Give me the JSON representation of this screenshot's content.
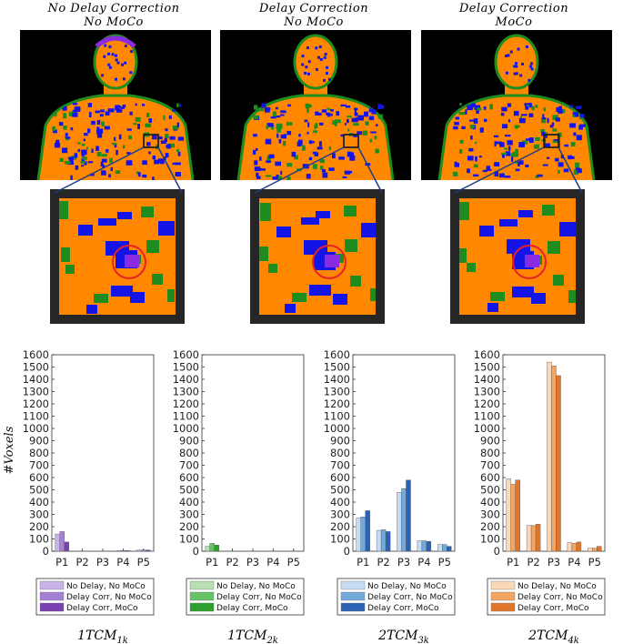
{
  "column_titles": [
    {
      "line1": "No Delay Correction",
      "line2": "No MoCo"
    },
    {
      "line1": "Delay Correction",
      "line2": "No MoCo"
    },
    {
      "line1": "Delay Correction",
      "line2": "MoCo"
    }
  ],
  "colors": {
    "orange": "#ff8800",
    "blue": "#1414e6",
    "green": "#1e8c1e",
    "purple": "#8a2be2",
    "highlight_circle": "#e8202a",
    "frame": "#262626"
  },
  "chart_data": [
    {
      "type": "bar",
      "model_label": {
        "base": "1TCM",
        "sub": "1k"
      },
      "ylabel": "#Voxels",
      "categories": [
        "P1",
        "P2",
        "P3",
        "P4",
        "P5"
      ],
      "ylim": [
        0,
        1600
      ],
      "yticks": [
        0,
        100,
        200,
        300,
        400,
        500,
        600,
        700,
        800,
        900,
        1000,
        1100,
        1200,
        1300,
        1400,
        1500,
        1600
      ],
      "grid": false,
      "legend_position": "below",
      "series": [
        {
          "name": "No Delay, No MoCo",
          "color": "#c9b3e6",
          "values": [
            140,
            0,
            0,
            5,
            10
          ]
        },
        {
          "name": "Delay Corr, No MoCo",
          "color": "#a680d4",
          "values": [
            160,
            0,
            0,
            5,
            10
          ]
        },
        {
          "name": "Delay Corr, MoCo",
          "color": "#7a3fb0",
          "values": [
            75,
            0,
            0,
            5,
            10
          ]
        }
      ]
    },
    {
      "type": "bar",
      "model_label": {
        "base": "1TCM",
        "sub": "2k"
      },
      "ylabel": "",
      "categories": [
        "P1",
        "P2",
        "P3",
        "P4",
        "P5"
      ],
      "ylim": [
        0,
        1600
      ],
      "yticks": [
        0,
        100,
        200,
        300,
        400,
        500,
        600,
        700,
        800,
        900,
        1000,
        1100,
        1200,
        1300,
        1400,
        1500,
        1600
      ],
      "grid": false,
      "legend_position": "below",
      "series": [
        {
          "name": "No Delay, No MoCo",
          "color": "#b7e0b0",
          "values": [
            40,
            0,
            0,
            0,
            0
          ]
        },
        {
          "name": "Delay Corr, No MoCo",
          "color": "#66c266",
          "values": [
            65,
            0,
            0,
            0,
            0
          ]
        },
        {
          "name": "Delay Corr, MoCo",
          "color": "#2ca02c",
          "values": [
            50,
            0,
            0,
            0,
            0
          ]
        }
      ]
    },
    {
      "type": "bar",
      "model_label": {
        "base": "2TCM",
        "sub": "3k"
      },
      "ylabel": "",
      "categories": [
        "P1",
        "P2",
        "P3",
        "P4",
        "P5"
      ],
      "ylim": [
        0,
        1600
      ],
      "yticks": [
        0,
        100,
        200,
        300,
        400,
        500,
        600,
        700,
        800,
        900,
        1000,
        1100,
        1200,
        1300,
        1400,
        1500,
        1600
      ],
      "grid": false,
      "legend_position": "below",
      "series": [
        {
          "name": "No Delay, No MoCo",
          "color": "#c6dcf2",
          "values": [
            270,
            170,
            480,
            85,
            55
          ]
        },
        {
          "name": "Delay Corr, No MoCo",
          "color": "#74a9dc",
          "values": [
            280,
            175,
            510,
            85,
            55
          ]
        },
        {
          "name": "Delay Corr, MoCo",
          "color": "#2c62b4",
          "values": [
            330,
            160,
            580,
            80,
            40
          ]
        }
      ]
    },
    {
      "type": "bar",
      "model_label": {
        "base": "2TCM",
        "sub": "4k"
      },
      "ylabel": "",
      "categories": [
        "P1",
        "P2",
        "P3",
        "P4",
        "P5"
      ],
      "ylim": [
        0,
        1600
      ],
      "yticks": [
        0,
        100,
        200,
        300,
        400,
        500,
        600,
        700,
        800,
        900,
        1000,
        1100,
        1200,
        1300,
        1400,
        1500,
        1600
      ],
      "grid": false,
      "legend_position": "below",
      "series": [
        {
          "name": "No Delay, No MoCo",
          "color": "#fbd9b8",
          "values": [
            590,
            210,
            1540,
            70,
            25
          ]
        },
        {
          "name": "Delay Corr, No MoCo",
          "color": "#f4a561",
          "values": [
            545,
            210,
            1510,
            65,
            25
          ]
        },
        {
          "name": "Delay Corr, MoCo",
          "color": "#e0762a",
          "values": [
            580,
            220,
            1430,
            75,
            40
          ]
        }
      ]
    }
  ]
}
